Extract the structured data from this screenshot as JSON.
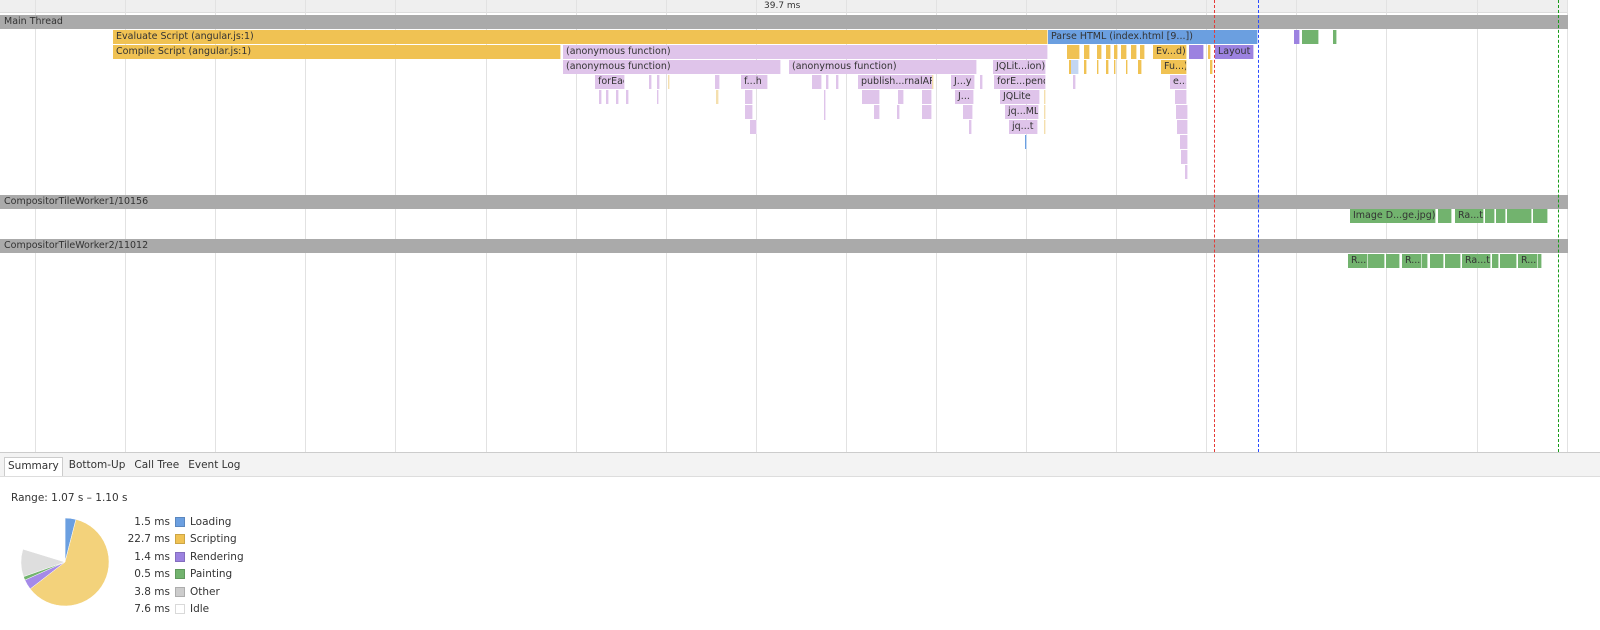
{
  "ruler": {
    "label": "39.7 ms"
  },
  "tracks": {
    "main": "Main Thread",
    "worker1": "CompositorTileWorker1/10156",
    "worker2": "CompositorTileWorker2/11012"
  },
  "events": {
    "evaluate_script": "Evaluate Script (angular.js:1)",
    "compile_script": "Compile Script (angular.js:1)",
    "anon1": "(anonymous function)",
    "anon2": "(anonymous function)",
    "anon3": "(anonymous function)",
    "parse_html": "Parse HTML (index.html [9...])",
    "ev_d": "Ev...d)",
    "layout": "Layout",
    "fu": "Fu...)",
    "e": "e...",
    "foreach": "forEach",
    "fh": "f...h",
    "publish": "publish...rnalAPI",
    "jy": "J...y",
    "jdots": "J...",
    "jqlit_ion": "JQLit...ion)",
    "forE_pend": "forE...pend",
    "jqlite": "JQLite",
    "jq_ml": "jq...ML",
    "jq_t": "jq...t",
    "image_decode": "Image D...ge.jpg)",
    "ra_t1": "Ra...t",
    "r1": "R...",
    "r2": "R...",
    "ra_t2": "Ra...t",
    "r3": "R..."
  },
  "tabs": [
    "Summary",
    "Bottom-Up",
    "Call Tree",
    "Event Log"
  ],
  "active_tab": "Summary",
  "summary": {
    "range": "Range: 1.07 s – 1.10 s",
    "items": [
      {
        "value": "1.5 ms",
        "label": "Loading",
        "ms": 1.5,
        "color": "#6b9fe0"
      },
      {
        "value": "22.7 ms",
        "label": "Scripting",
        "ms": 22.7,
        "color": "#f3d27b"
      },
      {
        "value": "1.4 ms",
        "label": "Rendering",
        "ms": 1.4,
        "color": "#a58ae8"
      },
      {
        "value": "0.5 ms",
        "label": "Painting",
        "ms": 0.5,
        "color": "#72b36e"
      },
      {
        "value": "3.8 ms",
        "label": "Other",
        "ms": 3.8,
        "color": "#dedede"
      },
      {
        "value": "7.6 ms",
        "label": "Idle",
        "ms": 7.6,
        "color": "#ffffff"
      }
    ]
  },
  "markers": {
    "red": "#e53935",
    "blue": "#2a4bff",
    "green": "#1a9b1a"
  }
}
